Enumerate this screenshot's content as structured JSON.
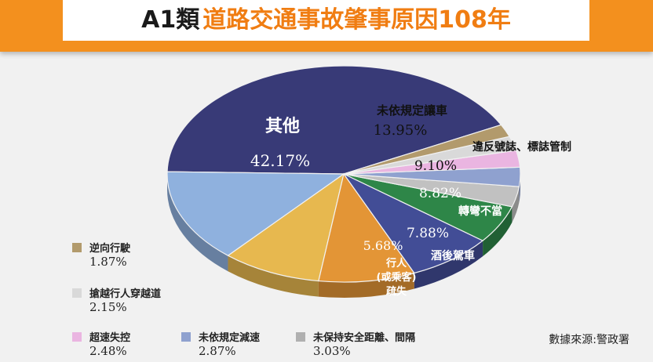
{
  "title": {
    "prefix": "A1類",
    "main": "道路交通事故肇事原因108年"
  },
  "source": "數據來源:警政署",
  "chart_data": {
    "type": "pie",
    "slices": [
      {
        "label": "其他",
        "value": 42.17,
        "display": "42.17%",
        "color": "#383a77"
      },
      {
        "label": "未依規定讓車",
        "value": 13.95,
        "display": "13.95%",
        "color": "#8fb1de"
      },
      {
        "label": "違反號誌、標誌管制",
        "value": 9.1,
        "display": "9.10%",
        "color": "#e7b84f"
      },
      {
        "label": "轉彎不當",
        "value": 8.82,
        "display": "8.82%",
        "color": "#e39536"
      },
      {
        "label": "酒後駕車",
        "value": 7.88,
        "display": "7.88%",
        "color": "#424d96"
      },
      {
        "label": "行人(或乘客)疏失",
        "value": 5.68,
        "display": "5.68%",
        "color": "#2e8648"
      },
      {
        "label": "未保持安全距離、間隔",
        "value": 3.03,
        "display": "3.03%",
        "color": "#c1c1c1"
      },
      {
        "label": "未依規定減速",
        "value": 2.87,
        "display": "2.87%",
        "color": "#8fa1cf"
      },
      {
        "label": "超速失控",
        "value": 2.48,
        "display": "2.48%",
        "color": "#eab5e1"
      },
      {
        "label": "搶越行人穿越道",
        "value": 2.15,
        "display": "2.15%",
        "color": "#d9d9d9"
      },
      {
        "label": "逆向行駛",
        "value": 1.87,
        "display": "1.87%",
        "color": "#b29a6c"
      }
    ],
    "side_color": "#a8322c",
    "legend": [
      {
        "label": "逆向行駛",
        "value": "1.87%",
        "color": "#b29a6c"
      },
      {
        "label": "搶越行人穿越道",
        "value": "2.15%",
        "color": "#d9d9d9"
      },
      {
        "label": "超速失控",
        "value": "2.48%",
        "color": "#eab5e1"
      },
      {
        "label": "未依規定減速",
        "value": "2.87%",
        "color": "#8fa1cf"
      },
      {
        "label": "未保持安全距離、間隔",
        "value": "3.03%",
        "color": "#b0b0b0"
      }
    ]
  }
}
